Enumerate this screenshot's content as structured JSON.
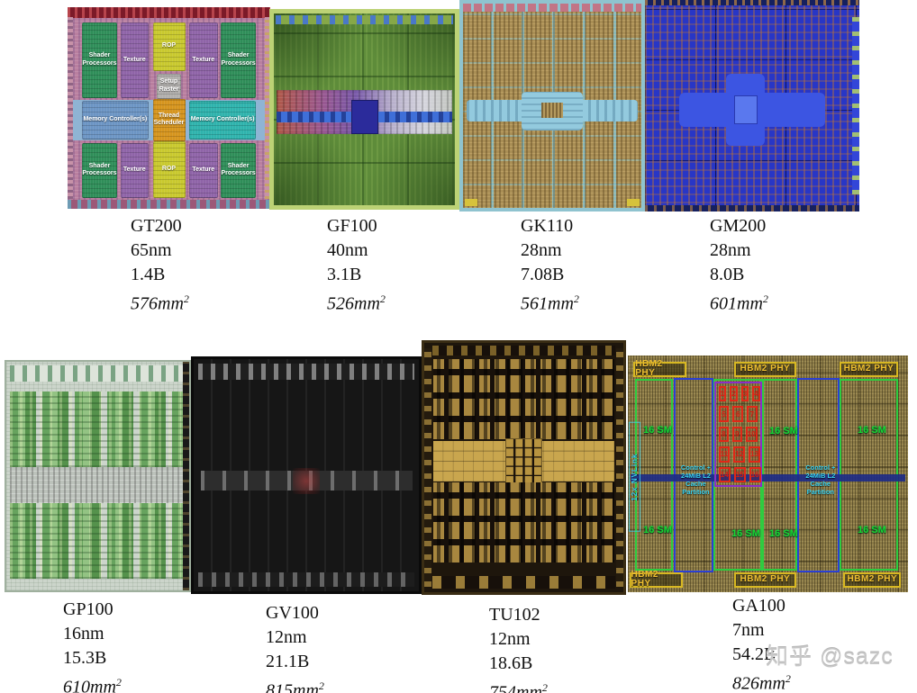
{
  "page": {
    "watermark": "知乎 @sazc"
  },
  "units": {
    "area_unit": "mm",
    "area_sup": "2"
  },
  "chips": [
    {
      "name": "GT200",
      "process": "65nm",
      "transistors": "1.4B",
      "area": "576"
    },
    {
      "name": "GF100",
      "process": "40nm",
      "transistors": "3.1B",
      "area": "526"
    },
    {
      "name": "GK110",
      "process": "28nm",
      "transistors": "7.08B",
      "area": "561"
    },
    {
      "name": "GM200",
      "process": "28nm",
      "transistors": "8.0B",
      "area": "601"
    },
    {
      "name": "GP100",
      "process": "16nm",
      "transistors": "15.3B",
      "area": "610"
    },
    {
      "name": "GV100",
      "process": "12nm",
      "transistors": "21.1B",
      "area": "815"
    },
    {
      "name": "TU102",
      "process": "12nm",
      "transistors": "18.6B",
      "area": "754"
    },
    {
      "name": "GA100",
      "process": "7nm",
      "transistors": "54.2B",
      "area": "826"
    }
  ],
  "gt200": {
    "shader": "Shader Processors",
    "texture": "Texture",
    "rop": "ROP",
    "setup": "Setup Raster",
    "memory": "Memory Controller(s)",
    "scheduler": "Thread Scheduler"
  },
  "ga100": {
    "hbm": "HBM2 PHY",
    "sm": "16 SM",
    "nvlink": "12x NVLink",
    "control": "Control + 24MiB L2 Cache Partition",
    "number_rows": [
      [
        "1",
        "2",
        "3",
        "4"
      ],
      [
        "5",
        "6",
        "7"
      ],
      [
        "8",
        "9",
        "10"
      ],
      [
        "11",
        "12",
        "13"
      ],
      [
        "14",
        "15",
        "16"
      ]
    ]
  },
  "colors": {
    "sm_green": "#18d832",
    "hbm_yellow": "#f0c030",
    "control_cyan": "#38d2f2",
    "grid_red": "#e02818",
    "outline_green": "#2ecc40",
    "outline_blue": "#2a3fd4"
  }
}
